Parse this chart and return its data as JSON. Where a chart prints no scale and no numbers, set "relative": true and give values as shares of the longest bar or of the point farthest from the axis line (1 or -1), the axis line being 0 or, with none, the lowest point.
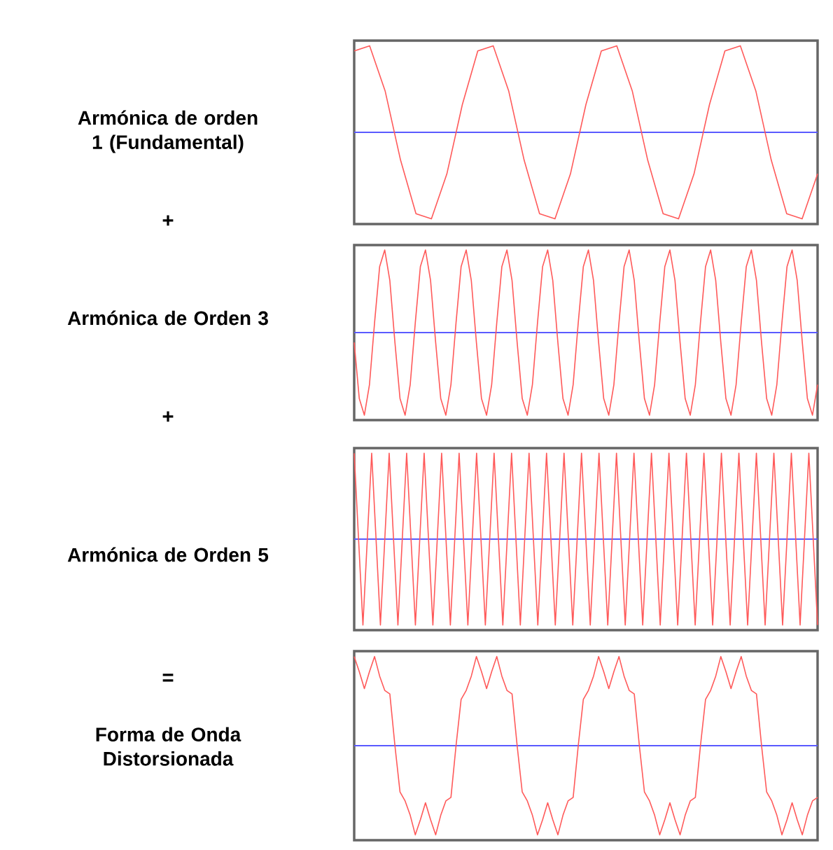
{
  "chart_data": [
    {
      "type": "line",
      "title": "Armónica de orden 1 (Fundamental)",
      "relative": true,
      "color": "#ff5a5a",
      "annotations": [
        "+"
      ],
      "ref_lines": [
        {
          "axis": "y",
          "value": 0,
          "color": "#5a5aff"
        }
      ],
      "categories": [
        null,
        null,
        null,
        null,
        null,
        null,
        null,
        null,
        null,
        null,
        null,
        null,
        null,
        null,
        null,
        null,
        null,
        null,
        null,
        null,
        null,
        null,
        null,
        null,
        null,
        null,
        null,
        null,
        null,
        null,
        null
      ],
      "values": [
        0.94,
        1,
        0.48,
        -0.32,
        -0.94,
        -1,
        -0.48,
        0.32,
        0.94,
        1,
        0.48,
        -0.32,
        -0.94,
        -1,
        -0.48,
        0.32,
        0.94,
        1,
        0.48,
        -0.32,
        -0.94,
        -1,
        -0.48,
        0.32,
        0.94,
        1,
        0.48,
        -0.32,
        -0.94,
        -1,
        -0.48
      ]
    },
    {
      "type": "line",
      "title": "Armónica de Orden 3",
      "relative": true,
      "color": "#ff5a5a",
      "annotations": [
        "+"
      ],
      "ref_lines": [
        {
          "axis": "y",
          "value": 0,
          "color": "#5a5aff"
        }
      ],
      "categories": [
        null,
        null,
        null,
        null,
        null,
        null,
        null,
        null,
        null,
        null,
        null,
        null,
        null,
        null,
        null,
        null,
        null,
        null,
        null,
        null,
        null,
        null,
        null,
        null,
        null,
        null,
        null,
        null,
        null,
        null,
        null,
        null,
        null,
        null,
        null,
        null,
        null,
        null,
        null,
        null,
        null,
        null,
        null,
        null,
        null,
        null,
        null,
        null,
        null,
        null,
        null,
        null,
        null,
        null,
        null,
        null,
        null,
        null,
        null,
        null,
        null,
        null,
        null,
        null,
        null,
        null,
        null,
        null,
        null,
        null,
        null,
        null,
        null,
        null,
        null,
        null,
        null,
        null,
        null,
        null,
        null,
        null,
        null,
        null,
        null,
        null,
        null,
        null,
        null,
        null,
        null,
        null
      ],
      "values": [
        -0.12,
        -0.8,
        -1,
        -0.63,
        0.12,
        0.8,
        1,
        0.63,
        -0.12,
        -0.8,
        -1,
        -0.63,
        0.12,
        0.8,
        1,
        0.63,
        -0.12,
        -0.8,
        -1,
        -0.63,
        0.12,
        0.8,
        1,
        0.63,
        -0.12,
        -0.8,
        -1,
        -0.63,
        0.12,
        0.8,
        1,
        0.63,
        -0.12,
        -0.8,
        -1,
        -0.63,
        0.12,
        0.8,
        1,
        0.63,
        -0.12,
        -0.8,
        -1,
        -0.63,
        0.12,
        0.8,
        1,
        0.63,
        -0.12,
        -0.8,
        -1,
        -0.63,
        0.12,
        0.8,
        1,
        0.63,
        -0.12,
        -0.8,
        -1,
        -0.63,
        0.12,
        0.8,
        1,
        0.63,
        -0.12,
        -0.8,
        -1,
        -0.63,
        0.12,
        0.8,
        1,
        0.63,
        -0.12,
        -0.8,
        -1,
        -0.63,
        0.12,
        0.8,
        1,
        0.63,
        -0.12,
        -0.8,
        -1,
        -0.63,
        0.12,
        0.8,
        1,
        0.63,
        -0.12,
        -0.8,
        -1,
        -0.63
      ]
    },
    {
      "type": "line",
      "title": "Armónica de Orden 5",
      "relative": true,
      "color": "#ff5a5a",
      "annotations": [
        "="
      ],
      "ref_lines": [
        {
          "axis": "y",
          "value": 0,
          "color": "#5a5aff"
        }
      ],
      "categories": [
        null,
        null,
        null,
        null,
        null,
        null,
        null,
        null,
        null,
        null,
        null,
        null,
        null,
        null,
        null,
        null,
        null,
        null,
        null,
        null,
        null,
        null,
        null,
        null,
        null,
        null,
        null,
        null,
        null,
        null,
        null,
        null,
        null,
        null,
        null,
        null,
        null,
        null,
        null,
        null,
        null,
        null,
        null,
        null,
        null,
        null,
        null,
        null,
        null,
        null,
        null,
        null,
        null,
        null,
        null,
        null,
        null,
        null,
        null,
        null,
        null,
        null,
        null,
        null,
        null,
        null,
        null,
        null,
        null,
        null,
        null,
        null,
        null,
        null,
        null,
        null,
        null,
        null,
        null,
        null,
        null,
        null,
        null,
        null,
        null,
        null,
        null,
        null,
        null,
        null,
        null,
        null,
        null,
        null,
        null,
        null,
        null,
        null,
        null,
        null,
        null,
        null,
        null,
        null,
        null,
        null,
        null
      ],
      "values": [
        1,
        0,
        -1,
        0,
        1,
        0,
        -1,
        0,
        1,
        0,
        -1,
        0,
        1,
        0,
        -1,
        0,
        1,
        0,
        -1,
        0,
        1,
        0,
        -1,
        0,
        1,
        0,
        -1,
        0,
        1,
        0,
        -1,
        0,
        1,
        0,
        -1,
        0,
        1,
        0,
        -1,
        0,
        1,
        0,
        -1,
        0,
        1,
        0,
        -1,
        0,
        1,
        0,
        -1,
        0,
        1,
        0,
        -1,
        0,
        1,
        0,
        -1,
        0,
        1,
        0,
        -1,
        0,
        1,
        0,
        -1,
        0,
        1,
        0,
        -1,
        0,
        1,
        0,
        -1,
        0,
        1,
        0,
        -1,
        0,
        1,
        0,
        -1,
        0,
        1,
        0,
        -1,
        0,
        1,
        0,
        -1,
        0,
        1,
        0,
        -1,
        0,
        1,
        0,
        -1,
        0,
        1,
        0,
        -1,
        0,
        1,
        0,
        -1
      ]
    },
    {
      "type": "line",
      "title": "Forma de Onda Distorsionada",
      "relative": true,
      "color": "#ff5a5a",
      "ref_lines": [
        {
          "axis": "y",
          "value": 0,
          "color": "#5a5aff"
        }
      ],
      "categories": [
        null,
        null,
        null,
        null,
        null,
        null,
        null,
        null,
        null,
        null,
        null,
        null,
        null,
        null,
        null,
        null,
        null,
        null,
        null,
        null,
        null,
        null,
        null,
        null,
        null,
        null,
        null,
        null,
        null,
        null,
        null,
        null,
        null,
        null,
        null,
        null,
        null,
        null,
        null,
        null,
        null,
        null,
        null,
        null,
        null,
        null,
        null,
        null,
        null,
        null,
        null,
        null,
        null,
        null,
        null,
        null,
        null,
        null,
        null,
        null,
        null,
        null,
        null,
        null,
        null,
        null,
        null,
        null,
        null,
        null,
        null,
        null,
        null,
        null,
        null,
        null,
        null,
        null,
        null,
        null,
        null,
        null,
        null,
        null,
        null,
        null,
        null,
        null,
        null,
        null,
        null,
        null
      ],
      "values": [
        1,
        0.83,
        0.64,
        0.83,
        1,
        0.78,
        0.62,
        0.58,
        0,
        -0.52,
        -0.62,
        -0.78,
        -1,
        -0.83,
        -0.64,
        -0.83,
        -1,
        -0.78,
        -0.62,
        -0.58,
        0,
        0.52,
        0.62,
        0.78,
        1,
        0.83,
        0.64,
        0.83,
        1,
        0.78,
        0.62,
        0.58,
        0,
        -0.52,
        -0.62,
        -0.78,
        -1,
        -0.83,
        -0.64,
        -0.83,
        -1,
        -0.78,
        -0.62,
        -0.58,
        0,
        0.52,
        0.62,
        0.78,
        1,
        0.83,
        0.64,
        0.83,
        1,
        0.78,
        0.62,
        0.58,
        0,
        -0.52,
        -0.62,
        -0.78,
        -1,
        -0.83,
        -0.64,
        -0.83,
        -1,
        -0.78,
        -0.62,
        -0.58,
        0,
        0.52,
        0.62,
        0.78,
        1,
        0.83,
        0.64,
        0.83,
        1,
        0.78,
        0.62,
        0.58,
        0,
        -0.52,
        -0.62,
        -0.78,
        -1,
        -0.83,
        -0.64,
        -0.83,
        -1,
        -0.78,
        -0.62,
        -0.58
      ]
    }
  ]
}
